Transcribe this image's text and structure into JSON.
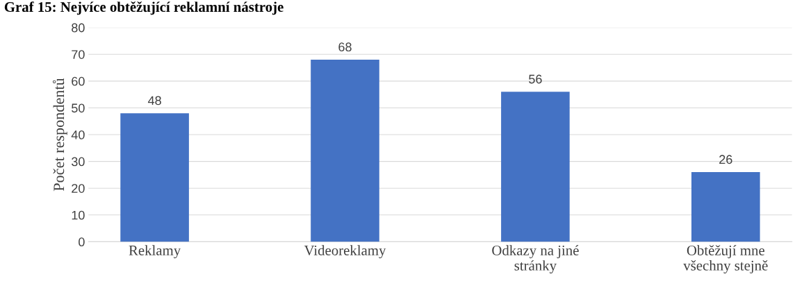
{
  "chart_data": {
    "type": "bar",
    "title": "Graf 15: Nejvíce obtěžující reklamní nástroje",
    "ylabel": "Počet respondentů",
    "categories": [
      "Reklamy",
      "Videoreklamy",
      "Odkazy na jiné\nstránky",
      "Obtěžují mne\nvšechny stejně"
    ],
    "values": [
      48,
      68,
      56,
      26
    ],
    "color": "#4472c4",
    "data_labels": true,
    "ylim": [
      0,
      80
    ],
    "yticks": [
      0,
      10,
      20,
      30,
      40,
      50,
      60,
      70,
      80
    ],
    "grid": "y"
  }
}
